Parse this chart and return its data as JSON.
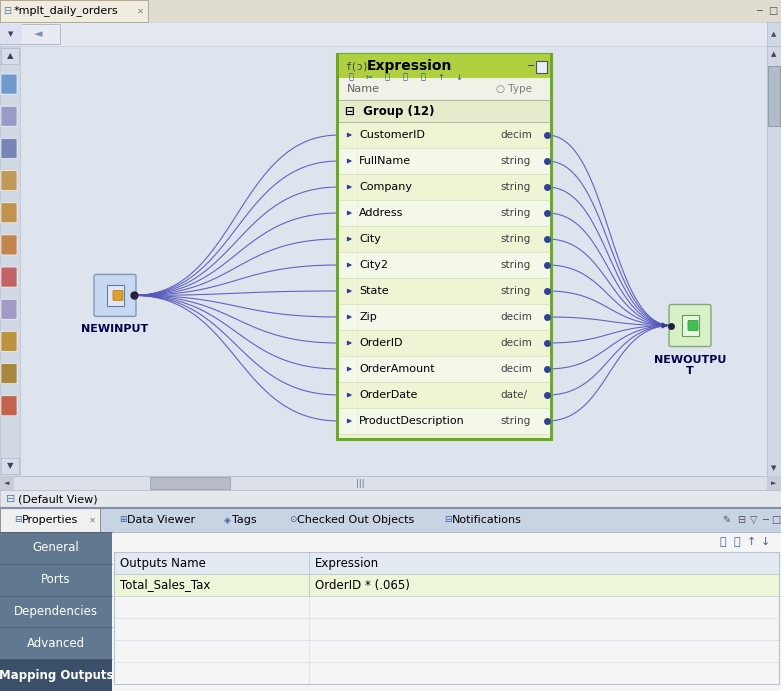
{
  "title_tab": "*mplt_daily_orders",
  "tab_bg": "#e8e4d8",
  "canvas_bg": "#dde4ed",
  "expr_box_bg": "#eef4d0",
  "expr_box_border": "#6aaa20",
  "expr_title_bg": "#b0d040",
  "expr_title_text": "Expression",
  "newinput_label": "NEWINPUT",
  "newoutput_label": "NEWOUTPU\nT",
  "group_label": "Group (12)",
  "fields": [
    {
      "name": "CustomerID",
      "type": "decim"
    },
    {
      "name": "FullName",
      "type": "string"
    },
    {
      "name": "Company",
      "type": "string"
    },
    {
      "name": "Address",
      "type": "string"
    },
    {
      "name": "City",
      "type": "string"
    },
    {
      "name": "City2",
      "type": "string"
    },
    {
      "name": "State",
      "type": "string"
    },
    {
      "name": "Zip",
      "type": "decim"
    },
    {
      "name": "OrderID",
      "type": "decim"
    },
    {
      "name": "OrderAmount",
      "type": "decim"
    },
    {
      "name": "OrderDate",
      "type": "date/"
    },
    {
      "name": "ProductDescription",
      "type": "string"
    }
  ],
  "bottom_panel_bg": "#f5f5f5",
  "bottom_tab_bar_bg": "#c8d4e4",
  "bottom_tabs": [
    "Properties",
    "Data Viewer",
    "Tags",
    "Checked Out Objects",
    "Notifications"
  ],
  "left_nav_items": [
    "General",
    "Ports",
    "Dependencies",
    "Advanced",
    "Mapping Outputs"
  ],
  "left_nav_active": "Mapping Outputs",
  "left_nav_active_bg": "#3a5068",
  "left_nav_bg": "#607890",
  "left_nav_text_color": "#ffffff",
  "table_header": [
    "Outputs Name",
    "Expression"
  ],
  "table_row": [
    "Total_Sales_Tax",
    "OrderID * (.065)"
  ],
  "table_row_bg": "#eef6d8",
  "table_header_bg": "#e4eaf2",
  "line_color": "#5555bb",
  "scrollbar_bg": "#d0d8e4",
  "default_view_text": "(Default View)",
  "top_toolbar_bg": "#e4e8f0",
  "title_bar_bg": "#e0dcd0",
  "left_strip_bg": "#d0d8e4"
}
